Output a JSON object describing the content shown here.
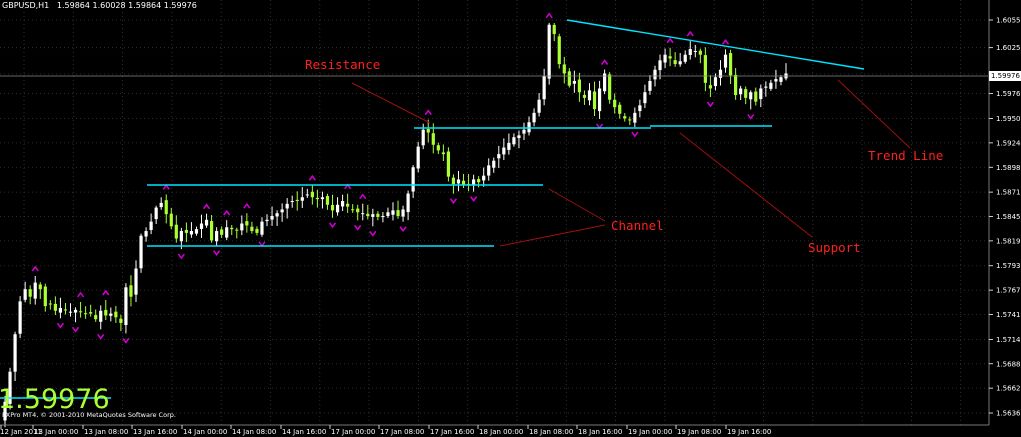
{
  "header": {
    "symbol_timeframe": "GBPUSD,H1",
    "ohlc": "1.59864 1.60028 1.59864 1.59976"
  },
  "big_price": "1.59976",
  "copyright": "FXPro MT4, © 2001-2010 MetaQuotes Software Corp.",
  "current_price_label": "1.59976",
  "annotations": {
    "resistance": "Resistance",
    "trend_line": "Trend Line",
    "channel": "Channel",
    "support": "Support"
  },
  "colors": {
    "background": "#000000",
    "grid": "#3a3a3a",
    "bull_candle": "#ffffff",
    "bear_candle": "#aaff33",
    "lines": "#00e5ff",
    "fractal": "#cc00cc",
    "annotation": "#ff2020"
  },
  "chart_data": {
    "type": "candlestick",
    "symbol": "GBPUSD",
    "timeframe": "H1",
    "ylim": [
      1.556,
      1.6075
    ],
    "y_ticks": [
      "1.60550",
      "1.60255",
      "1.59976",
      "1.59765",
      "1.59500",
      "1.59240",
      "1.58980",
      "1.58715",
      "1.58455",
      "1.58195",
      "1.57930",
      "1.57670",
      "1.57410",
      "1.57145",
      "1.56885",
      "1.56625",
      "1.56360"
    ],
    "x_ticks": [
      "12 Jan 2011",
      "13 Jan 00:00",
      "13 Jan 08:00",
      "13 Jan 16:00",
      "14 Jan 00:00",
      "14 Jan 08:00",
      "14 Jan 16:00",
      "17 Jan 00:00",
      "17 Jan 08:00",
      "17 Jan 16:00",
      "18 Jan 00:00",
      "18 Jan 08:00",
      "18 Jan 16:00",
      "19 Jan 00:00",
      "19 Jan 08:00",
      "19 Jan 16:00"
    ],
    "close_series": [
      1.5648,
      1.568,
      1.572,
      1.5755,
      1.5768,
      1.576,
      1.5775,
      1.5768,
      1.575,
      1.5752,
      1.5745,
      1.5748,
      1.5746,
      1.5744,
      1.5746,
      1.5744,
      1.5742,
      1.5742,
      1.5736,
      1.5745,
      1.574,
      1.5742,
      1.5738,
      1.5732,
      1.577,
      1.576,
      1.579,
      1.5825,
      1.583,
      1.584,
      1.5855,
      1.586,
      1.5848,
      1.5835,
      1.5822,
      1.583,
      1.5828,
      1.583,
      1.5832,
      1.5838,
      1.5842,
      1.582,
      1.583,
      1.5826,
      1.5834,
      1.5832,
      1.5831,
      1.5838,
      1.5836,
      1.583,
      1.5828,
      1.584,
      1.5842,
      1.5846,
      1.5849,
      1.5853,
      1.5859,
      1.5862,
      1.5862,
      1.5866,
      1.5869,
      1.5866,
      1.5864,
      1.5866,
      1.5858,
      1.5852,
      1.5858,
      1.5862,
      1.5856,
      1.5853,
      1.585,
      1.5849,
      1.5846,
      1.5848,
      1.5845,
      1.5846,
      1.585,
      1.5852,
      1.5846,
      1.5853,
      1.587,
      1.5898,
      1.592,
      1.5938,
      1.5935,
      1.5922,
      1.5916,
      1.5912,
      1.5888,
      1.588,
      1.5885,
      1.5879,
      1.588,
      1.5885,
      1.5882,
      1.5889,
      1.59,
      1.5905,
      1.5912,
      1.5919,
      1.5924,
      1.593,
      1.5932,
      1.5938,
      1.5946,
      1.5956,
      1.597,
      1.5995,
      1.605,
      1.604,
      1.6008,
      1.5998,
      1.5985,
      1.599,
      1.5978,
      1.5972,
      1.598,
      1.596,
      1.5982,
      1.5998,
      1.597,
      1.5962,
      1.5955,
      1.595,
      1.5948,
      1.5956,
      1.5964,
      1.5978,
      1.599,
      1.6002,
      1.6012,
      1.6018,
      1.6014,
      1.6008,
      1.6011,
      1.6018,
      1.6024,
      1.6022,
      1.6018,
      1.5988,
      1.5982,
      1.5994,
      1.6002,
      1.6018,
      1.5996,
      1.5975,
      1.5982,
      1.5972,
      1.5978,
      1.5968,
      1.5982,
      1.5984,
      1.5988,
      1.5992,
      1.5994,
      1.5998
    ]
  }
}
